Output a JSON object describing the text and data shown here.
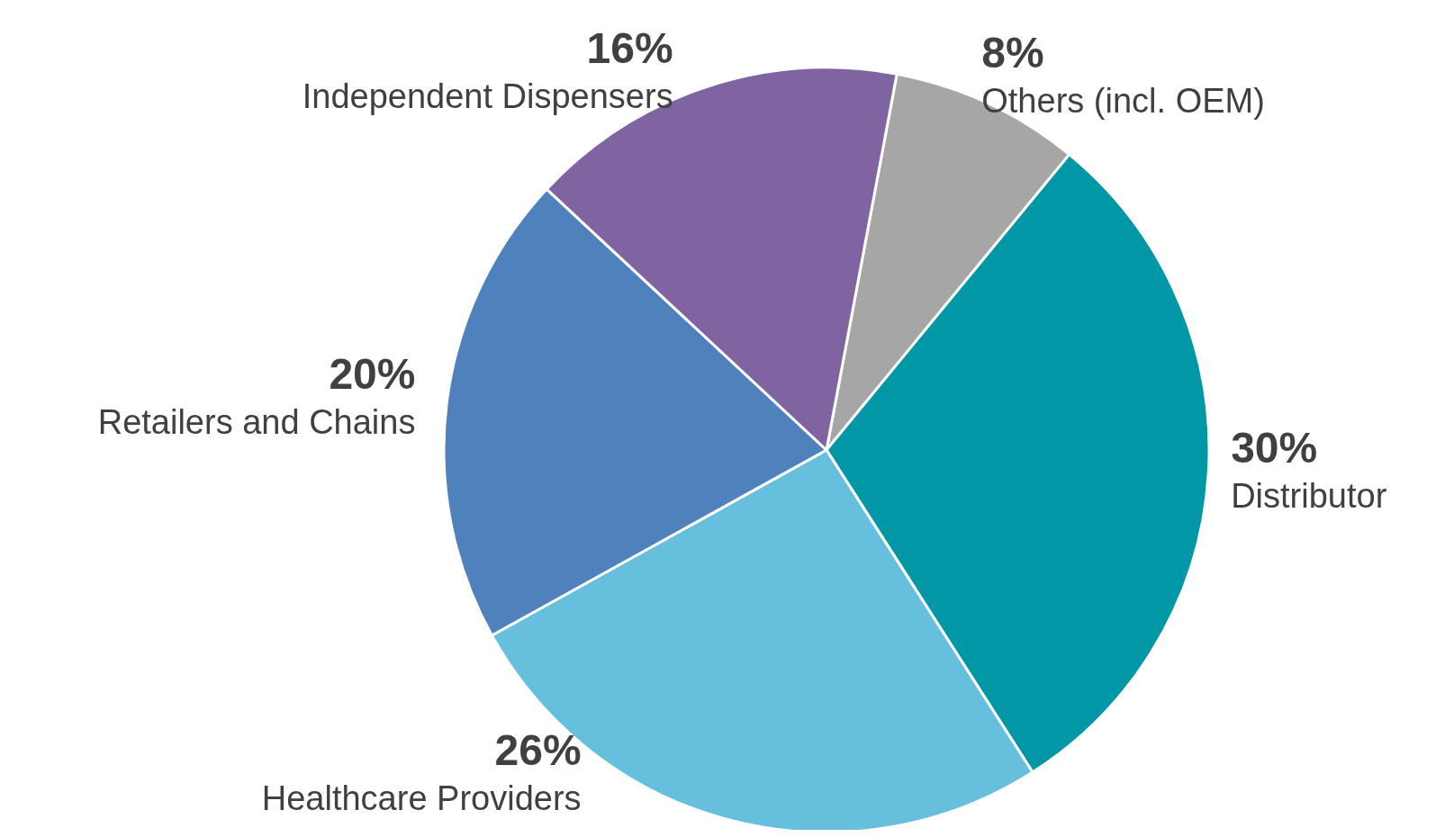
{
  "chart_data": {
    "type": "pie",
    "categories": [
      "Others (incl. OEM)",
      "Distributor",
      "Healthcare Providers",
      "Retailers and Chains",
      "Independent Dispensers"
    ],
    "values": [
      8,
      30,
      26,
      20,
      16
    ],
    "value_labels": [
      "8%",
      "30%",
      "26%",
      "20%",
      "16%"
    ],
    "colors": [
      "#a6a6a6",
      "#0097a7",
      "#67bfde",
      "#4f81bd",
      "#8064a2"
    ]
  }
}
